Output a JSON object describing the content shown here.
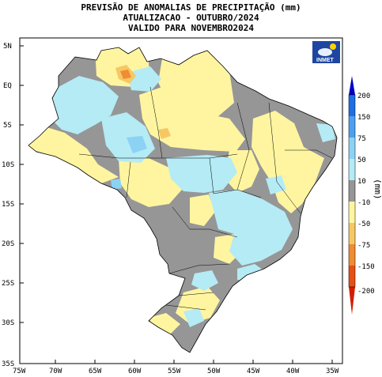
{
  "title": {
    "line1": "PREVISÃO DE ANOMALIAS DE PRECIPITAÇÃO (mm)",
    "line2": "ATUALIZACAO - OUTUBRO/2024",
    "line3": "VALIDO PARA NOVEMBRO2024"
  },
  "logo": {
    "text": "INMET"
  },
  "units": "(mm)",
  "axes": {
    "lat_labels": [
      "5N",
      "EQ",
      "5S",
      "10S",
      "15S",
      "20S",
      "25S",
      "30S",
      "35S"
    ],
    "lon_labels": [
      "75W",
      "70W",
      "65W",
      "60W",
      "55W",
      "50W",
      "45W",
      "40W",
      "35W"
    ]
  },
  "colorbar": {
    "labels": [
      "200",
      "150",
      "75",
      "50",
      "10",
      "-10",
      "-50",
      "-75",
      "-150",
      "-200"
    ],
    "colors": [
      "#0000c8",
      "#1e6ee6",
      "#4ba0f0",
      "#8cd2f5",
      "#b4ebf5",
      "#969696",
      "#fff5a0",
      "#f5c864",
      "#f08c32",
      "#e65014",
      "#d21e00"
    ]
  },
  "legend_colors": {
    "gray": "#969696",
    "light_blue": "#b4ebf5",
    "mid_blue": "#8cd2f5",
    "yellow": "#fff5a0",
    "light_orange": "#f5c864",
    "orange": "#f08c32"
  }
}
